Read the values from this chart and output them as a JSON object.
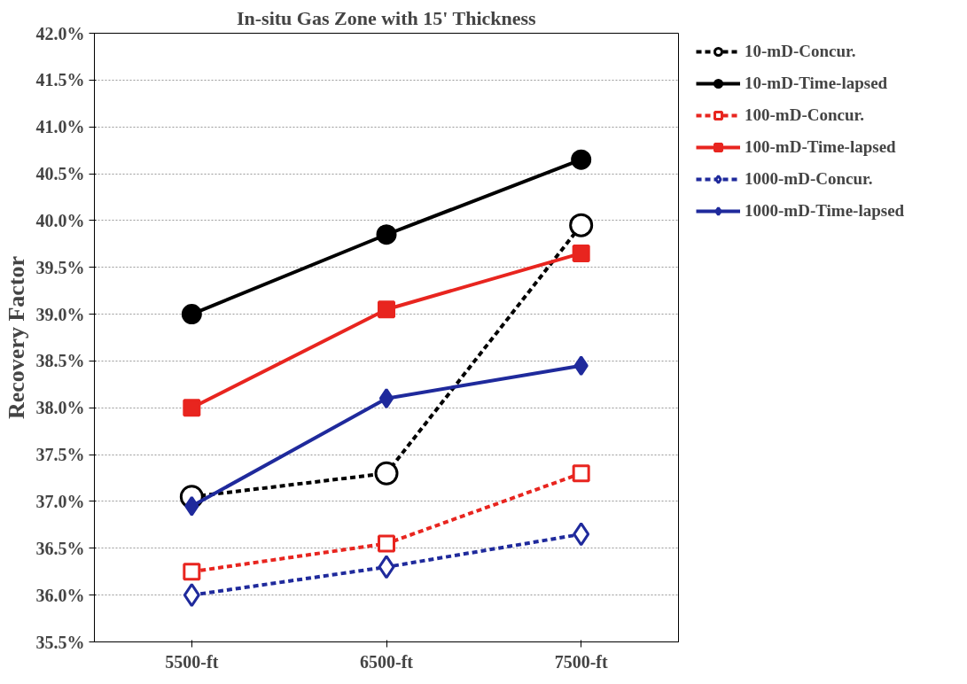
{
  "chart_data": {
    "type": "line",
    "title": "In-situ Gas Zone with 15' Thickness",
    "ylabel": "Recovery Factor",
    "categories": [
      "5500-ft",
      "6500-ft",
      "7500-ft"
    ],
    "ylim": [
      35.5,
      42.0
    ],
    "yticks": [
      {
        "value": 35.5,
        "label": "35.5%"
      },
      {
        "value": 36.0,
        "label": "36.0%"
      },
      {
        "value": 36.5,
        "label": "36.5%"
      },
      {
        "value": 37.0,
        "label": "37.0%"
      },
      {
        "value": 37.5,
        "label": "37.5%"
      },
      {
        "value": 38.0,
        "label": "38.0%"
      },
      {
        "value": 38.5,
        "label": "38.5%"
      },
      {
        "value": 39.0,
        "label": "39.0%"
      },
      {
        "value": 39.5,
        "label": "39.5%"
      },
      {
        "value": 40.0,
        "label": "40.0%"
      },
      {
        "value": 40.5,
        "label": "40.5%"
      },
      {
        "value": 41.0,
        "label": "41.0%"
      },
      {
        "value": 41.5,
        "label": "41.5%"
      },
      {
        "value": 42.0,
        "label": "42.0%"
      }
    ],
    "grid": "y",
    "legend": "right",
    "series": [
      {
        "name": "10-mD-Concur.",
        "color": "#000000",
        "marker": "circle",
        "line_style": "dashed",
        "values": [
          37.05,
          37.3,
          39.95
        ]
      },
      {
        "name": "10-mD-Time-lapsed",
        "color": "#000000",
        "marker": "circle",
        "line_style": "solid",
        "values": [
          39.0,
          39.85,
          40.65
        ]
      },
      {
        "name": "100-mD-Concur.",
        "color": "#e8251f",
        "marker": "square",
        "line_style": "dashed",
        "values": [
          36.25,
          36.55,
          37.3
        ]
      },
      {
        "name": "100-mD-Time-lapsed",
        "color": "#e8251f",
        "marker": "square",
        "line_style": "solid",
        "values": [
          38.0,
          39.05,
          39.65
        ]
      },
      {
        "name": "1000-mD-Concur.",
        "color": "#1f2a9c",
        "marker": "diamond",
        "line_style": "dashed",
        "values": [
          36.0,
          36.3,
          36.65
        ]
      },
      {
        "name": "1000-mD-Time-lapsed",
        "color": "#1f2a9c",
        "marker": "diamond",
        "line_style": "solid",
        "values": [
          36.95,
          38.1,
          38.45
        ]
      }
    ]
  }
}
